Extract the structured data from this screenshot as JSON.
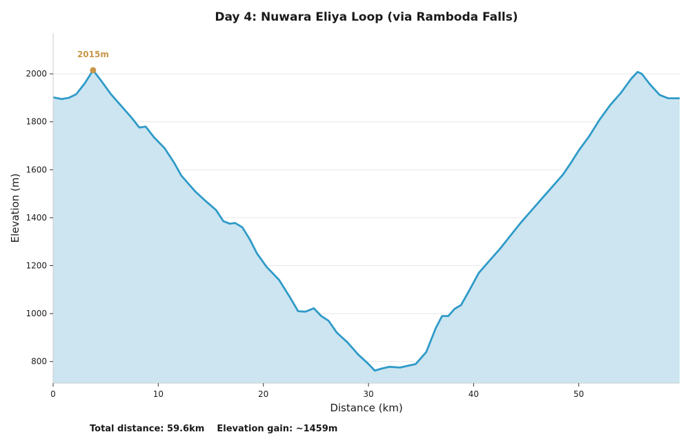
{
  "chart_data": {
    "type": "area",
    "title": "Day 4: Nuwara Eliya Loop (via Ramboda Falls)",
    "xlabel": "Distance (km)",
    "ylabel": "Elevation (m)",
    "xlim": [
      0,
      59.6
    ],
    "ylim": [
      710,
      2170
    ],
    "xticks": [
      0,
      10,
      20,
      30,
      40,
      50
    ],
    "yticks": [
      800,
      1000,
      1200,
      1400,
      1600,
      1800,
      2000
    ],
    "grid": "horizontal",
    "colors": {
      "line": "#2e9ac8",
      "fill": "#cce5f0",
      "peak": "#c8964a"
    },
    "peak": {
      "x": 3.8,
      "y": 2015,
      "label": "2015m"
    },
    "series": [
      {
        "x": [
          0,
          0.8,
          1.5,
          2.2,
          3.0,
          3.8,
          4.5,
          5.5,
          6.5,
          7.5,
          8.2,
          8.8,
          9.6,
          10.6,
          11.5,
          12.2,
          13.5,
          14.5,
          15.5,
          16.2,
          16.8,
          17.3,
          18.0,
          18.7,
          19.4,
          20.3,
          21.5,
          22.5,
          23.3,
          24.0,
          24.8,
          25.5,
          26.2,
          27.0,
          28.0,
          29.0,
          30.0,
          30.6,
          31.2,
          32.0,
          33.0,
          34.5,
          35.5,
          36.4,
          37.0,
          37.6,
          38.2,
          38.8,
          39.5,
          40.5,
          41.5,
          42.5,
          43.5,
          44.5,
          45.5,
          46.5,
          47.5,
          48.5,
          49.2,
          50.0,
          51.0,
          52.0,
          53.0,
          54.0,
          55.0,
          55.6,
          56.0,
          56.8,
          57.7,
          58.5,
          59.6
        ],
        "y": [
          1902,
          1895,
          1900,
          1915,
          1960,
          2015,
          1975,
          1915,
          1865,
          1815,
          1776,
          1780,
          1735,
          1690,
          1630,
          1575,
          1510,
          1470,
          1432,
          1385,
          1375,
          1378,
          1360,
          1310,
          1250,
          1195,
          1140,
          1070,
          1010,
          1008,
          1022,
          990,
          970,
          920,
          880,
          830,
          790,
          762,
          770,
          778,
          775,
          790,
          840,
          940,
          990,
          990,
          1020,
          1035,
          1090,
          1170,
          1220,
          1270,
          1325,
          1380,
          1430,
          1480,
          1530,
          1580,
          1625,
          1680,
          1740,
          1810,
          1870,
          1920,
          1980,
          2008,
          2000,
          1955,
          1912,
          1898,
          1898
        ]
      }
    ]
  },
  "footer": {
    "text": "Total distance: 59.6km    Elevation gain: ~1459m"
  }
}
